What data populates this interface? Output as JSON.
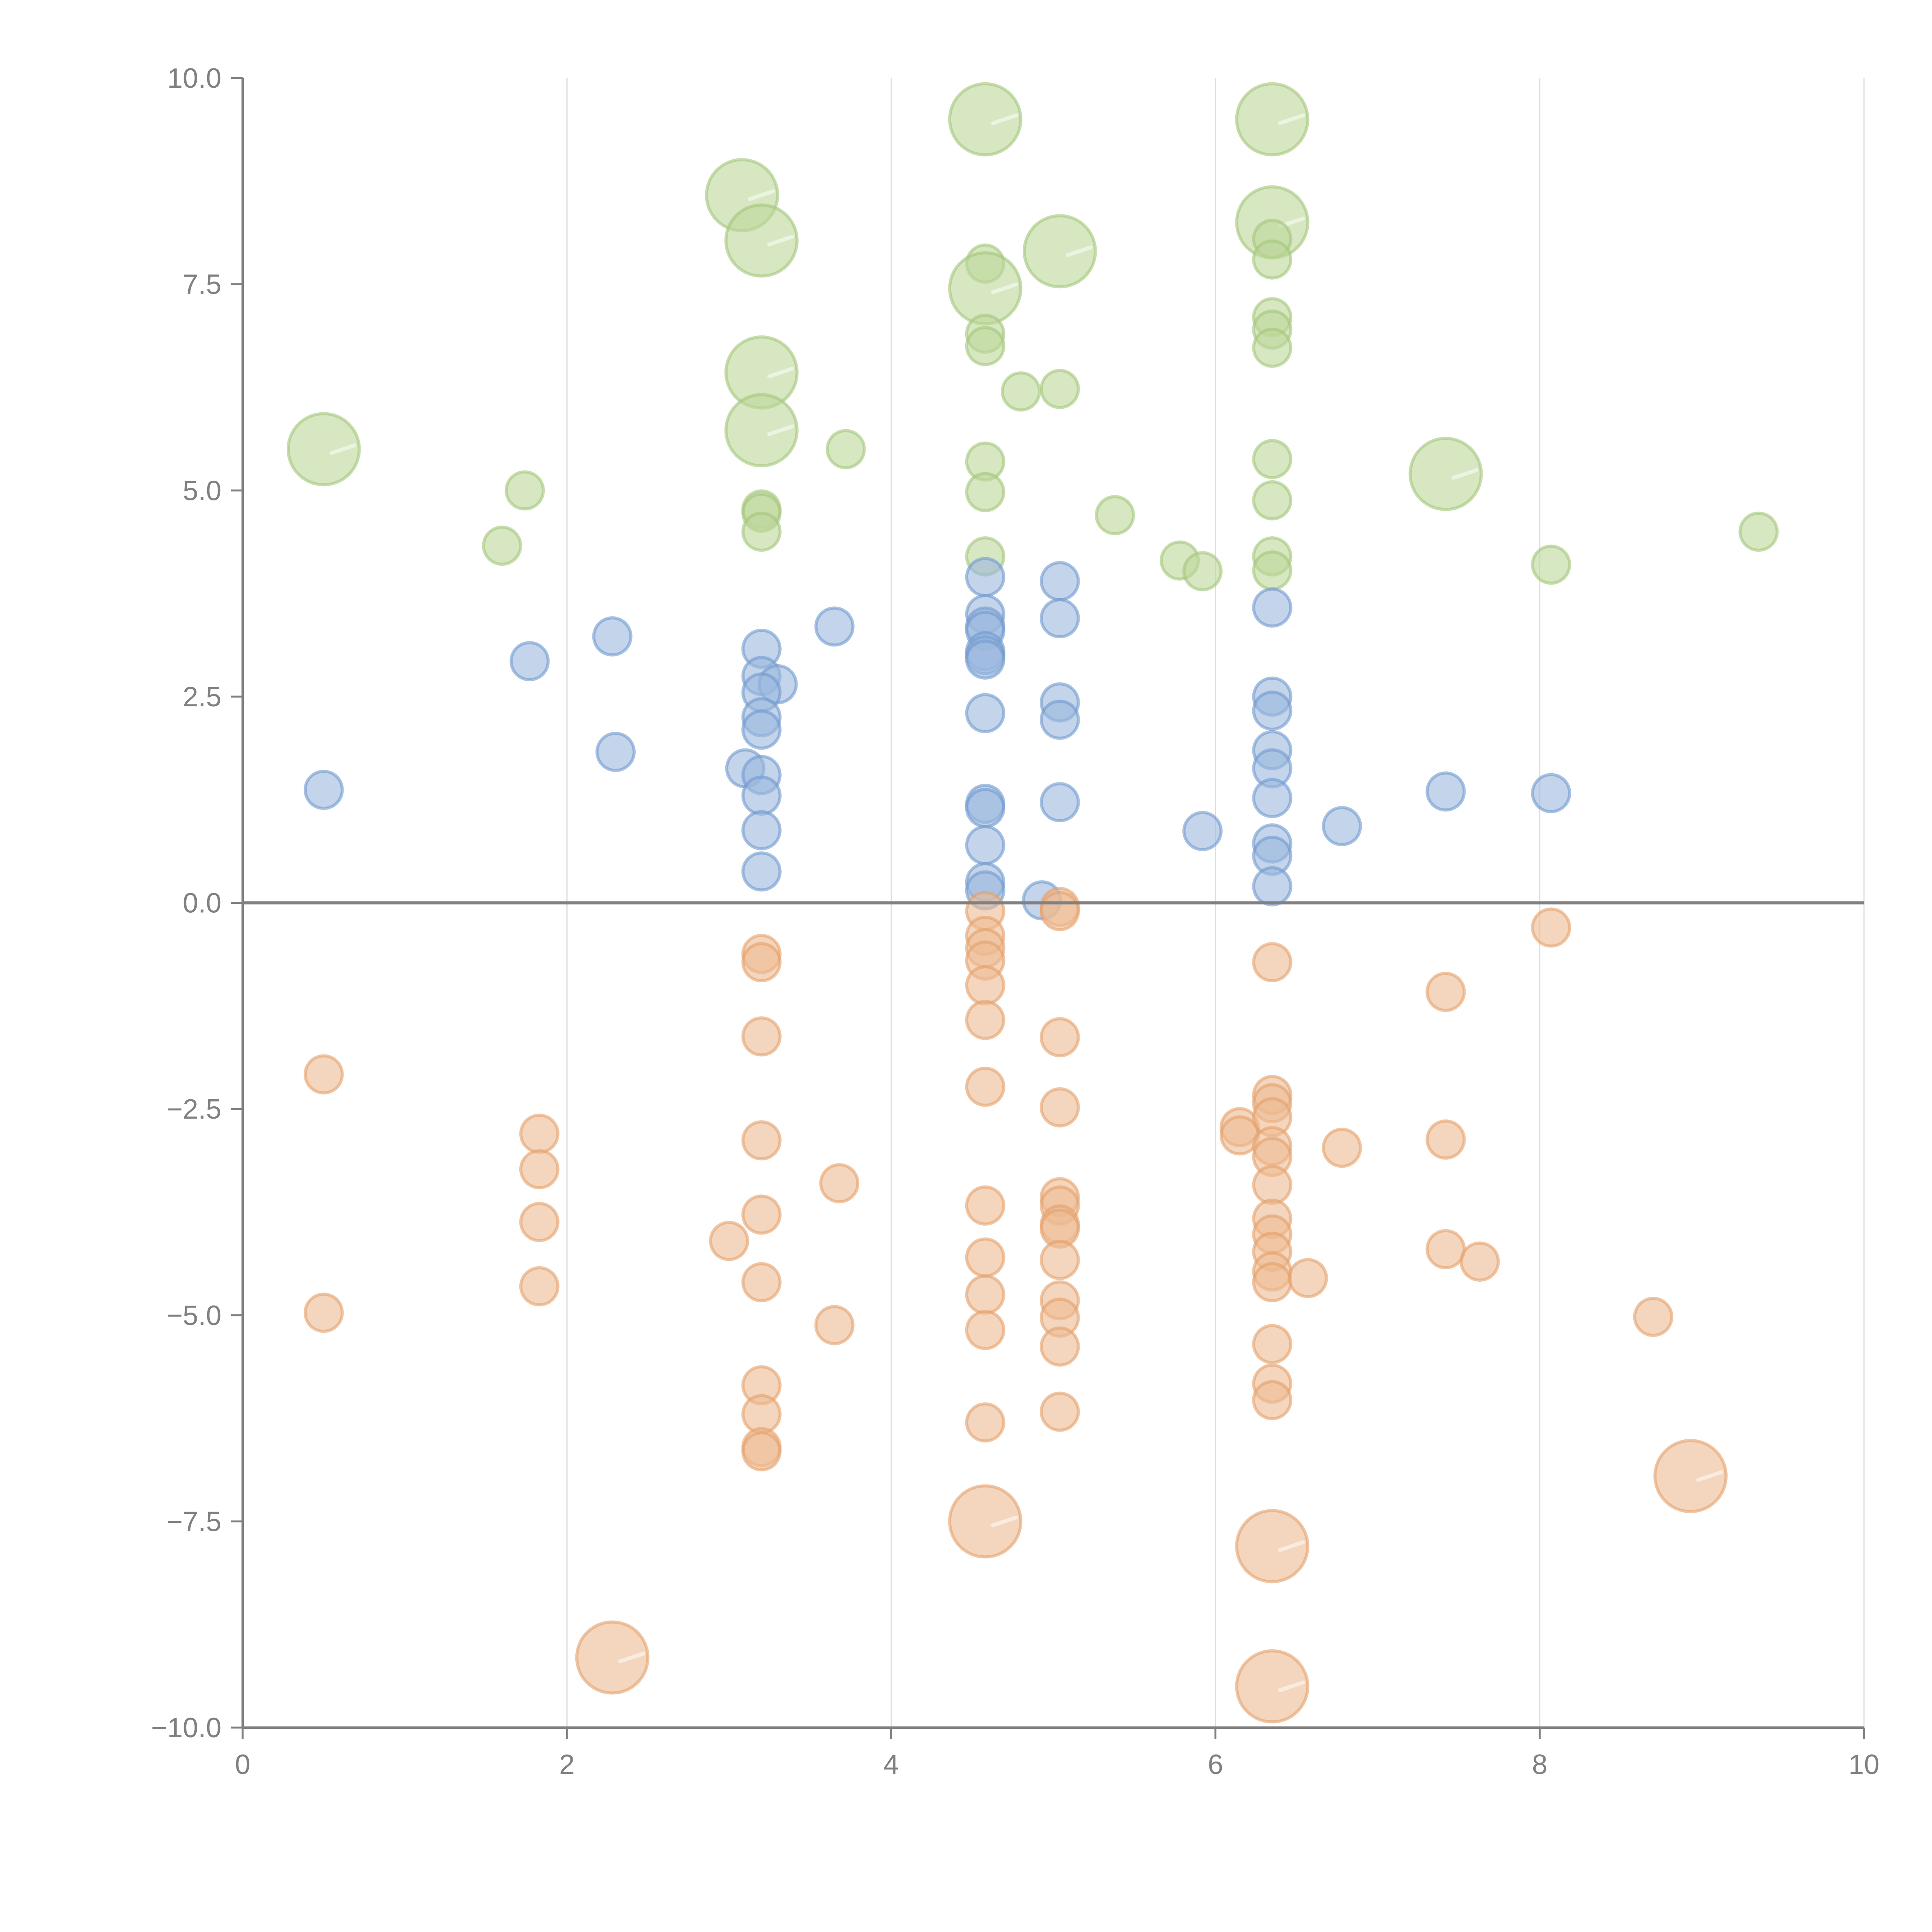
{
  "chart_data": {
    "type": "scatter",
    "title": "",
    "xlabel": "",
    "ylabel": "",
    "xlim": [
      0,
      10
    ],
    "ylim": [
      -10,
      10
    ],
    "x_ticks": [
      "0",
      "2",
      "4",
      "6",
      "8",
      "10"
    ],
    "y_ticks": [
      "10.0",
      "7.5",
      "5.0",
      "2.5",
      "0.0",
      "−2.5",
      "−5.0",
      "−7.5",
      "−10.0"
    ],
    "x_tick_values": [
      0,
      2,
      4,
      6,
      8,
      10
    ],
    "y_tick_values": [
      10,
      7.5,
      5,
      2.5,
      0,
      -2.5,
      -5,
      -7.5,
      -10
    ],
    "grid": "vertical",
    "zero_line": true,
    "legend": "none",
    "colors": {
      "green": "#8fbc5a",
      "blue": "#5b8cc9",
      "orange": "#e09650"
    },
    "series": [
      {
        "name": "green",
        "color": "#a8cc7a",
        "points": [
          {
            "x": 0.5,
            "y": 5.5,
            "size": "large"
          },
          {
            "x": 1.74,
            "y": 5.0,
            "size": "small"
          },
          {
            "x": 1.6,
            "y": 4.33,
            "size": "small"
          },
          {
            "x": 3.08,
            "y": 8.58,
            "size": "large"
          },
          {
            "x": 3.2,
            "y": 8.03,
            "size": "large"
          },
          {
            "x": 3.2,
            "y": 6.43,
            "size": "large"
          },
          {
            "x": 3.2,
            "y": 5.73,
            "size": "large"
          },
          {
            "x": 3.2,
            "y": 4.77,
            "size": "small"
          },
          {
            "x": 3.2,
            "y": 4.73,
            "size": "small"
          },
          {
            "x": 3.2,
            "y": 4.5,
            "size": "small"
          },
          {
            "x": 3.72,
            "y": 5.5,
            "size": "small"
          },
          {
            "x": 4.58,
            "y": 9.5,
            "size": "large"
          },
          {
            "x": 4.58,
            "y": 7.75,
            "size": "small"
          },
          {
            "x": 4.58,
            "y": 7.45,
            "size": "large"
          },
          {
            "x": 4.58,
            "y": 6.9,
            "size": "small"
          },
          {
            "x": 4.58,
            "y": 6.75,
            "size": "small"
          },
          {
            "x": 4.58,
            "y": 5.35,
            "size": "small"
          },
          {
            "x": 4.58,
            "y": 4.98,
            "size": "small"
          },
          {
            "x": 4.58,
            "y": 4.2,
            "size": "small"
          },
          {
            "x": 4.8,
            "y": 6.2,
            "size": "small"
          },
          {
            "x": 5.04,
            "y": 7.9,
            "size": "large"
          },
          {
            "x": 5.04,
            "y": 6.23,
            "size": "small"
          },
          {
            "x": 5.38,
            "y": 4.7,
            "size": "small"
          },
          {
            "x": 5.78,
            "y": 4.15,
            "size": "small"
          },
          {
            "x": 5.92,
            "y": 4.02,
            "size": "small"
          },
          {
            "x": 6.35,
            "y": 9.5,
            "size": "large"
          },
          {
            "x": 6.35,
            "y": 8.25,
            "size": "large"
          },
          {
            "x": 6.35,
            "y": 8.05,
            "size": "small"
          },
          {
            "x": 6.35,
            "y": 7.8,
            "size": "small"
          },
          {
            "x": 6.35,
            "y": 7.1,
            "size": "small"
          },
          {
            "x": 6.35,
            "y": 6.95,
            "size": "small"
          },
          {
            "x": 6.35,
            "y": 6.73,
            "size": "small"
          },
          {
            "x": 6.35,
            "y": 5.38,
            "size": "small"
          },
          {
            "x": 6.35,
            "y": 4.88,
            "size": "small"
          },
          {
            "x": 6.35,
            "y": 4.2,
            "size": "small"
          },
          {
            "x": 6.35,
            "y": 4.03,
            "size": "small"
          },
          {
            "x": 7.42,
            "y": 5.2,
            "size": "large"
          },
          {
            "x": 8.07,
            "y": 4.1,
            "size": "small"
          },
          {
            "x": 9.35,
            "y": 4.5,
            "size": "small"
          }
        ]
      },
      {
        "name": "blue",
        "color": "#7ba3d4",
        "points": [
          {
            "x": 0.5,
            "y": 1.37,
            "size": "small"
          },
          {
            "x": 1.77,
            "y": 2.93,
            "size": "small"
          },
          {
            "x": 2.28,
            "y": 3.23,
            "size": "small"
          },
          {
            "x": 2.3,
            "y": 1.83,
            "size": "small"
          },
          {
            "x": 3.2,
            "y": 3.08,
            "size": "small"
          },
          {
            "x": 3.2,
            "y": 2.75,
            "size": "small"
          },
          {
            "x": 3.3,
            "y": 2.65,
            "size": "small"
          },
          {
            "x": 3.2,
            "y": 2.55,
            "size": "small"
          },
          {
            "x": 3.2,
            "y": 2.25,
            "size": "small"
          },
          {
            "x": 3.2,
            "y": 2.1,
            "size": "small"
          },
          {
            "x": 3.1,
            "y": 1.63,
            "size": "small"
          },
          {
            "x": 3.2,
            "y": 1.55,
            "size": "small"
          },
          {
            "x": 3.2,
            "y": 1.3,
            "size": "small"
          },
          {
            "x": 3.2,
            "y": 0.88,
            "size": "small"
          },
          {
            "x": 3.2,
            "y": 0.38,
            "size": "small"
          },
          {
            "x": 3.65,
            "y": 3.35,
            "size": "small"
          },
          {
            "x": 4.58,
            "y": 3.95,
            "size": "small"
          },
          {
            "x": 4.58,
            "y": 3.5,
            "size": "small"
          },
          {
            "x": 4.58,
            "y": 3.35,
            "size": "small"
          },
          {
            "x": 4.58,
            "y": 3.3,
            "size": "small"
          },
          {
            "x": 4.58,
            "y": 3.05,
            "size": "small"
          },
          {
            "x": 4.58,
            "y": 3.0,
            "size": "small"
          },
          {
            "x": 4.58,
            "y": 2.95,
            "size": "small"
          },
          {
            "x": 4.58,
            "y": 2.3,
            "size": "small"
          },
          {
            "x": 4.58,
            "y": 1.2,
            "size": "small"
          },
          {
            "x": 4.58,
            "y": 1.15,
            "size": "small"
          },
          {
            "x": 4.58,
            "y": 0.7,
            "size": "small"
          },
          {
            "x": 4.58,
            "y": 0.25,
            "size": "small"
          },
          {
            "x": 4.58,
            "y": 0.15,
            "size": "small"
          },
          {
            "x": 4.93,
            "y": 0.03,
            "size": "small"
          },
          {
            "x": 5.04,
            "y": 3.9,
            "size": "small"
          },
          {
            "x": 5.04,
            "y": 3.45,
            "size": "small"
          },
          {
            "x": 5.04,
            "y": 2.43,
            "size": "small"
          },
          {
            "x": 5.04,
            "y": 2.22,
            "size": "small"
          },
          {
            "x": 5.04,
            "y": 1.22,
            "size": "small"
          },
          {
            "x": 5.92,
            "y": 0.87,
            "size": "small"
          },
          {
            "x": 6.35,
            "y": 3.58,
            "size": "small"
          },
          {
            "x": 6.35,
            "y": 2.5,
            "size": "small"
          },
          {
            "x": 6.35,
            "y": 2.33,
            "size": "small"
          },
          {
            "x": 6.35,
            "y": 1.85,
            "size": "small"
          },
          {
            "x": 6.35,
            "y": 1.63,
            "size": "small"
          },
          {
            "x": 6.35,
            "y": 1.27,
            "size": "small"
          },
          {
            "x": 6.35,
            "y": 0.72,
            "size": "small"
          },
          {
            "x": 6.35,
            "y": 0.57,
            "size": "small"
          },
          {
            "x": 6.35,
            "y": 0.2,
            "size": "small"
          },
          {
            "x": 6.78,
            "y": 0.93,
            "size": "small"
          },
          {
            "x": 7.42,
            "y": 1.35,
            "size": "small"
          },
          {
            "x": 8.07,
            "y": 1.33,
            "size": "small"
          }
        ]
      },
      {
        "name": "orange",
        "color": "#e8a878",
        "points": [
          {
            "x": 0.5,
            "y": -2.08,
            "size": "small"
          },
          {
            "x": 0.5,
            "y": -4.97,
            "size": "small"
          },
          {
            "x": 1.83,
            "y": -2.8,
            "size": "small"
          },
          {
            "x": 1.83,
            "y": -3.23,
            "size": "small"
          },
          {
            "x": 1.83,
            "y": -3.87,
            "size": "small"
          },
          {
            "x": 1.83,
            "y": -4.65,
            "size": "small"
          },
          {
            "x": 2.28,
            "y": -9.15,
            "size": "large"
          },
          {
            "x": 3.0,
            "y": -4.1,
            "size": "small"
          },
          {
            "x": 3.2,
            "y": -0.62,
            "size": "small"
          },
          {
            "x": 3.2,
            "y": -0.72,
            "size": "small"
          },
          {
            "x": 3.2,
            "y": -1.62,
            "size": "small"
          },
          {
            "x": 3.2,
            "y": -2.88,
            "size": "small"
          },
          {
            "x": 3.2,
            "y": -3.78,
            "size": "small"
          },
          {
            "x": 3.2,
            "y": -4.6,
            "size": "small"
          },
          {
            "x": 3.2,
            "y": -5.85,
            "size": "small"
          },
          {
            "x": 3.2,
            "y": -6.2,
            "size": "small"
          },
          {
            "x": 3.2,
            "y": -6.6,
            "size": "small"
          },
          {
            "x": 3.2,
            "y": -6.65,
            "size": "small"
          },
          {
            "x": 3.68,
            "y": -3.4,
            "size": "small"
          },
          {
            "x": 3.65,
            "y": -5.12,
            "size": "small"
          },
          {
            "x": 4.58,
            "y": -0.1,
            "size": "small"
          },
          {
            "x": 4.58,
            "y": -0.4,
            "size": "small"
          },
          {
            "x": 4.58,
            "y": -0.55,
            "size": "small"
          },
          {
            "x": 4.58,
            "y": -0.7,
            "size": "small"
          },
          {
            "x": 4.58,
            "y": -1.0,
            "size": "small"
          },
          {
            "x": 4.58,
            "y": -1.42,
            "size": "small"
          },
          {
            "x": 4.58,
            "y": -2.23,
            "size": "small"
          },
          {
            "x": 4.58,
            "y": -3.67,
            "size": "small"
          },
          {
            "x": 4.58,
            "y": -4.3,
            "size": "small"
          },
          {
            "x": 4.58,
            "y": -4.75,
            "size": "small"
          },
          {
            "x": 4.58,
            "y": -5.18,
            "size": "small"
          },
          {
            "x": 4.58,
            "y": -6.3,
            "size": "small"
          },
          {
            "x": 4.58,
            "y": -7.5,
            "size": "large"
          },
          {
            "x": 5.04,
            "y": -0.05,
            "size": "small"
          },
          {
            "x": 5.04,
            "y": -0.1,
            "size": "small"
          },
          {
            "x": 5.04,
            "y": -1.63,
            "size": "small"
          },
          {
            "x": 5.04,
            "y": -2.48,
            "size": "small"
          },
          {
            "x": 5.04,
            "y": -3.57,
            "size": "small"
          },
          {
            "x": 5.04,
            "y": -3.67,
            "size": "small"
          },
          {
            "x": 5.04,
            "y": -3.9,
            "size": "small"
          },
          {
            "x": 5.04,
            "y": -3.95,
            "size": "small"
          },
          {
            "x": 5.04,
            "y": -4.33,
            "size": "small"
          },
          {
            "x": 5.04,
            "y": -4.82,
            "size": "small"
          },
          {
            "x": 5.04,
            "y": -5.03,
            "size": "small"
          },
          {
            "x": 5.04,
            "y": -5.38,
            "size": "small"
          },
          {
            "x": 5.04,
            "y": -6.17,
            "size": "small"
          },
          {
            "x": 6.15,
            "y": -2.72,
            "size": "small"
          },
          {
            "x": 6.15,
            "y": -2.82,
            "size": "small"
          },
          {
            "x": 6.35,
            "y": -0.72,
            "size": "small"
          },
          {
            "x": 6.35,
            "y": -2.33,
            "size": "small"
          },
          {
            "x": 6.35,
            "y": -2.43,
            "size": "small"
          },
          {
            "x": 6.35,
            "y": -2.6,
            "size": "small"
          },
          {
            "x": 6.35,
            "y": -2.95,
            "size": "small"
          },
          {
            "x": 6.35,
            "y": -3.08,
            "size": "small"
          },
          {
            "x": 6.35,
            "y": -3.42,
            "size": "small"
          },
          {
            "x": 6.35,
            "y": -3.83,
            "size": "small"
          },
          {
            "x": 6.35,
            "y": -4.02,
            "size": "small"
          },
          {
            "x": 6.35,
            "y": -4.23,
            "size": "small"
          },
          {
            "x": 6.35,
            "y": -4.47,
            "size": "small"
          },
          {
            "x": 6.35,
            "y": -4.6,
            "size": "small"
          },
          {
            "x": 6.35,
            "y": -5.35,
            "size": "small"
          },
          {
            "x": 6.35,
            "y": -5.83,
            "size": "small"
          },
          {
            "x": 6.35,
            "y": -6.03,
            "size": "small"
          },
          {
            "x": 6.35,
            "y": -7.8,
            "size": "large"
          },
          {
            "x": 6.35,
            "y": -9.5,
            "size": "large"
          },
          {
            "x": 6.57,
            "y": -4.55,
            "size": "small"
          },
          {
            "x": 6.78,
            "y": -2.97,
            "size": "small"
          },
          {
            "x": 7.42,
            "y": -1.08,
            "size": "small"
          },
          {
            "x": 7.42,
            "y": -2.87,
            "size": "small"
          },
          {
            "x": 7.42,
            "y": -4.2,
            "size": "small"
          },
          {
            "x": 7.63,
            "y": -4.35,
            "size": "small"
          },
          {
            "x": 8.07,
            "y": -0.3,
            "size": "small"
          },
          {
            "x": 8.7,
            "y": -5.02,
            "size": "small"
          },
          {
            "x": 8.93,
            "y": -6.95,
            "size": "large"
          }
        ]
      }
    ]
  }
}
